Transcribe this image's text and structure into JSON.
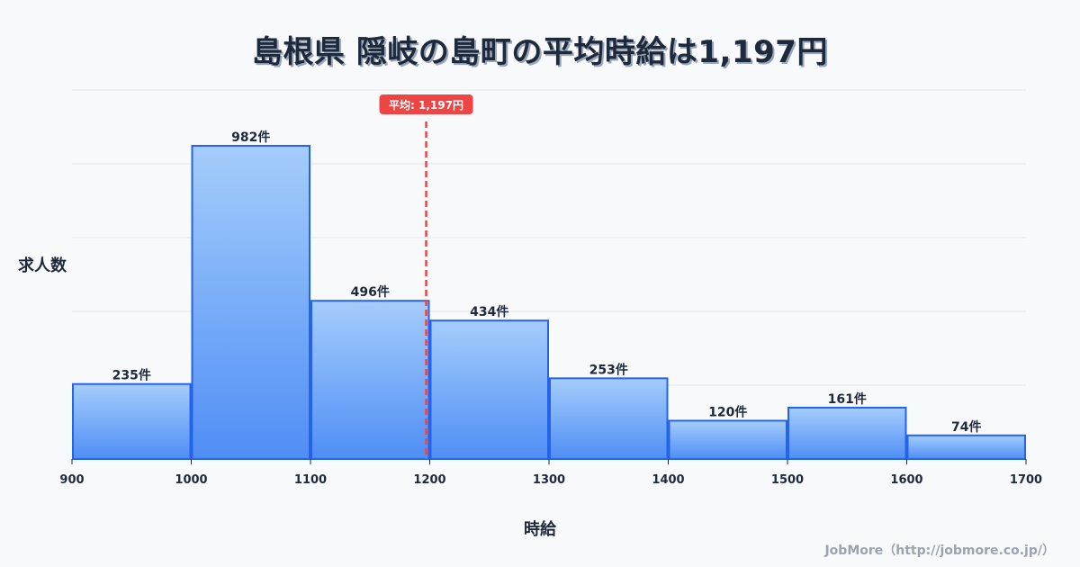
{
  "title": "島根県 隠岐の島町の平均時給は1,197円",
  "y_axis_label": "求人数",
  "x_axis_label": "時給",
  "credit": "JobMore（http://jobmore.co.jp/）",
  "average_label": "平均: 1,197円",
  "colors": {
    "bar_top": "#a5cdfb",
    "bar_bottom": "#4f8ef5",
    "bar_border": "#2563eb",
    "average_line": "#ef4444",
    "gridline": "#e2e5ec",
    "text": "#1e293b"
  },
  "chart_data": {
    "type": "bar",
    "subtype": "histogram",
    "title": "島根県 隠岐の島町の平均時給は1,197円",
    "xlabel": "時給",
    "ylabel": "求人数",
    "bin_edges": [
      900,
      1000,
      1100,
      1200,
      1300,
      1400,
      1500,
      1600,
      1700
    ],
    "categories": [
      "900-1000",
      "1000-1100",
      "1100-1200",
      "1200-1300",
      "1300-1400",
      "1400-1500",
      "1500-1600",
      "1600-1700"
    ],
    "values": [
      235,
      982,
      496,
      434,
      253,
      120,
      161,
      74
    ],
    "value_labels": [
      "235件",
      "982件",
      "496件",
      "434件",
      "253件",
      "120件",
      "161件",
      "74件"
    ],
    "x_ticks": [
      "900",
      "1000",
      "1100",
      "1200",
      "1300",
      "1400",
      "1500",
      "1600",
      "1700"
    ],
    "xlim": [
      900,
      1700
    ],
    "ylim": [
      0,
      1157
    ],
    "grid": "horizontal",
    "y_tick_labels_shown": false,
    "annotations": [
      {
        "type": "vline",
        "x": 1197,
        "style": "dashed",
        "color": "#ef4444",
        "label": "平均: 1,197円"
      }
    ],
    "legend": null
  }
}
